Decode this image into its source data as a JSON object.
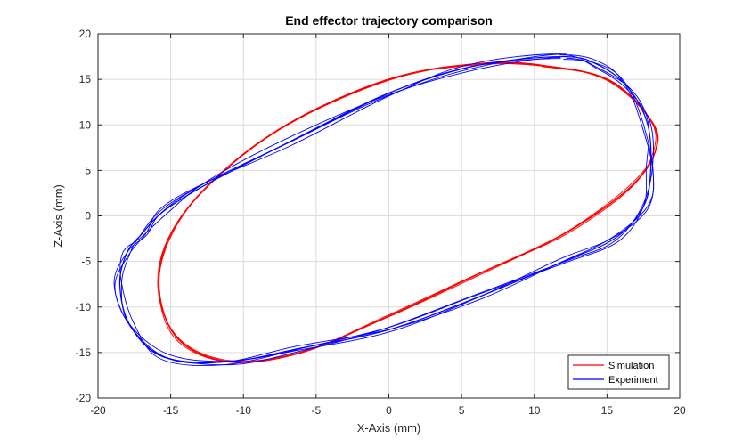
{
  "chart_data": {
    "type": "line",
    "title": "End effector trajectory comparison",
    "xlabel": "X-Axis (mm)",
    "ylabel": "Z-Axis (mm)",
    "xlim": [
      -20,
      20
    ],
    "ylim": [
      -20,
      20
    ],
    "xticks": [
      -20,
      -15,
      -10,
      -5,
      0,
      5,
      10,
      15,
      20
    ],
    "yticks": [
      -20,
      -15,
      -10,
      -5,
      0,
      5,
      10,
      15,
      20
    ],
    "grid": true,
    "legend": "bottom-right",
    "series": [
      {
        "name": "Simulation",
        "color": "#ff0000",
        "x": [
          10.5,
          15.0,
          18.0,
          18.3,
          16.5,
          12.0,
          6.0,
          0.0,
          -6.0,
          -11.0,
          -14.5,
          -15.8,
          -15.0,
          -12.0,
          -7.0,
          0.0,
          6.0,
          10.5
        ],
        "y": [
          16.5,
          15.0,
          10.5,
          7.0,
          3.0,
          -2.0,
          -6.5,
          -11.0,
          -15.0,
          -16.0,
          -13.5,
          -8.0,
          -2.0,
          4.0,
          10.0,
          15.0,
          16.7,
          16.5
        ]
      },
      {
        "name": "Experiment",
        "color": "#0000ff",
        "x": [
          12.0,
          14.5,
          16.5,
          17.8,
          18.0,
          17.5,
          15.5,
          12.0,
          6.0,
          0.0,
          -6.0,
          -11.0,
          -15.5,
          -17.8,
          -18.5,
          -18.0,
          -17.0,
          -15.5,
          -12.5,
          -7.0,
          0.0,
          6.0,
          12.0
        ],
        "y": [
          17.5,
          16.5,
          14.0,
          10.0,
          5.0,
          1.0,
          -2.5,
          -5.0,
          -9.0,
          -12.5,
          -14.5,
          -16.0,
          -15.5,
          -12.0,
          -7.5,
          -4.0,
          -2.0,
          0.5,
          3.5,
          8.0,
          13.5,
          16.5,
          17.5
        ]
      }
    ]
  }
}
